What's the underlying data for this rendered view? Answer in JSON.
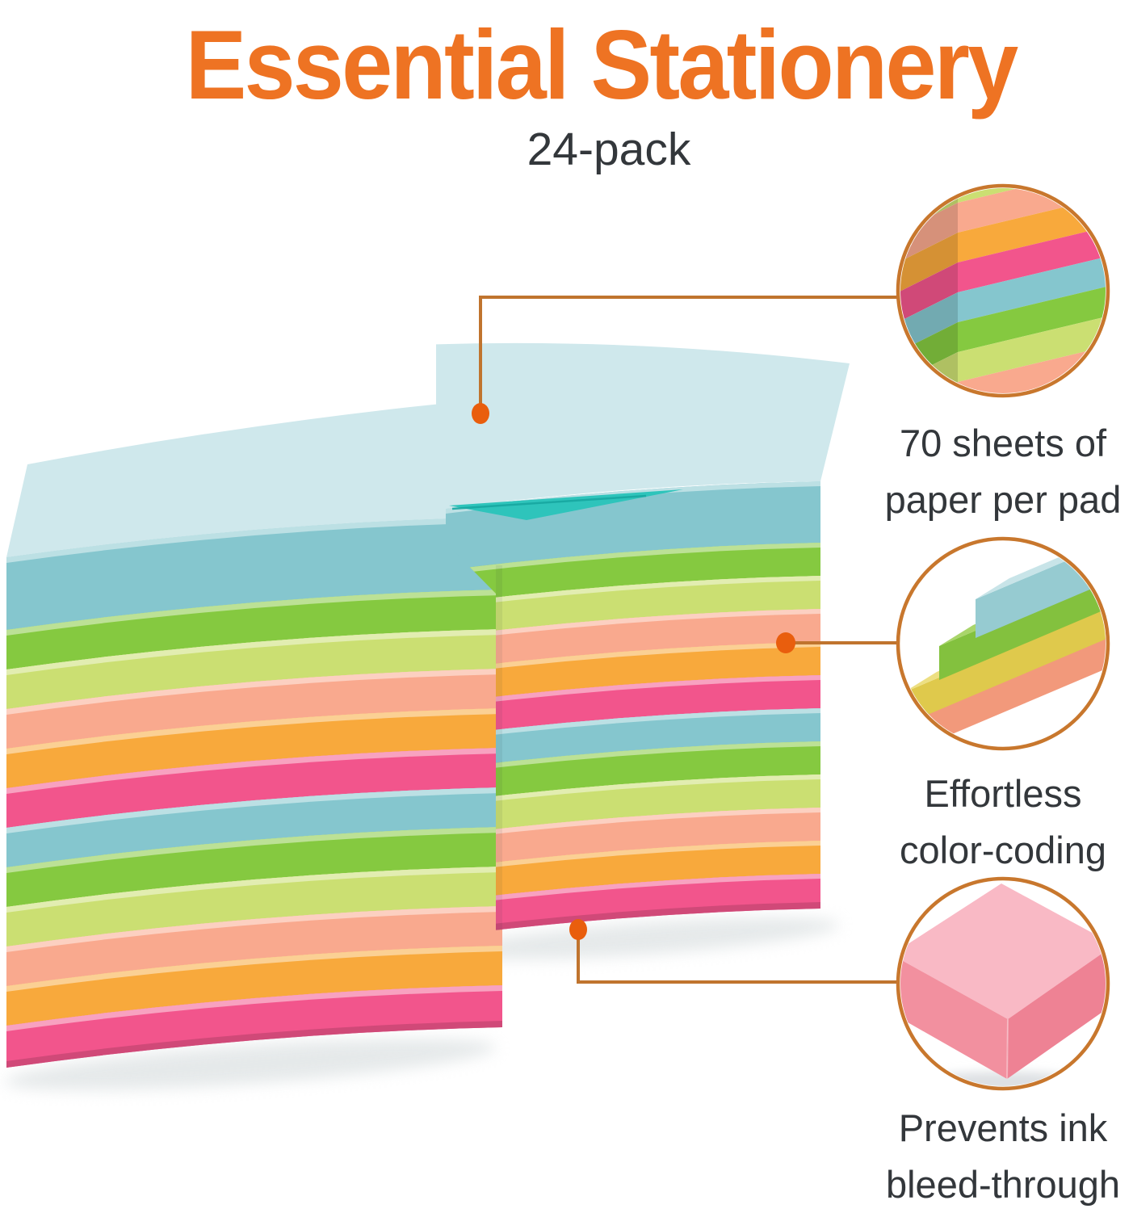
{
  "header": {
    "title": "Essential Stationery",
    "subtitle": "24-pack"
  },
  "features": [
    {
      "id": "sheet-count",
      "lines": [
        "70 sheets of",
        "paper per pad"
      ]
    },
    {
      "id": "color-coding",
      "lines": [
        "Effortless",
        "color-coding"
      ]
    },
    {
      "id": "ink-bleed",
      "lines": [
        "Prevents ink",
        "bleed-through"
      ]
    }
  ],
  "product": {
    "pack_count": 24,
    "stacks": 2,
    "pads_per_stack": 12,
    "pad_color_cycle_top_to_bottom": [
      "blue",
      "green",
      "yellow-green",
      "salmon",
      "orange",
      "pink"
    ],
    "palette": {
      "blue": "#85C6CE",
      "blueTop": "#CFE8EC",
      "green": "#85C940",
      "ygreen": "#CBDF72",
      "salmon": "#F9A98E",
      "orange": "#F8A93C",
      "pink": "#F2558C",
      "tealSheet": "#2EC4BB",
      "tealSheetDark": "#17A8A1",
      "sideBlueShade": "#9FC9D1",
      "stairSalmon": "#F2997B",
      "stairSalmonTop": "#F8BFA9",
      "stairYellow": "#DFC94C",
      "stairYellowTop": "#EDDF82",
      "stairGreen": "#83C13E",
      "stairGreenTop": "#A9D56A",
      "stairBlue": "#96CBD1",
      "stairBlueTop": "#C8E4E8",
      "pinkPadTop": "#F9B9C5",
      "pinkPadLeft": "#F2909F",
      "pinkPadRight": "#EE8294",
      "shadow": "#E3E7E8",
      "padShadow": "#DDE0E3"
    },
    "colors": {
      "background": "#FFFFFF",
      "title": "#EE7323",
      "text": "#33373B",
      "line": "#C0742E",
      "dot": "#E95E0D",
      "circle_stroke": "#C8772D"
    }
  }
}
